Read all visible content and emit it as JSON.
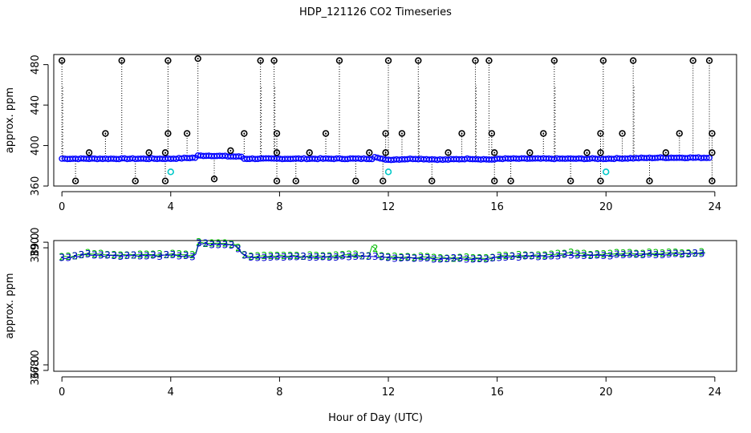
{
  "title": "HDP_121126  CO2 Timeseries",
  "xlabel": "Hour of Day (UTC)",
  "colors": {
    "black": "#000000",
    "blue": "#0000ff",
    "cyan": "#00c8c8",
    "green": "#00bb00",
    "navy": "#0000cc"
  },
  "chart_data": [
    {
      "type": "scatter",
      "panel": "top",
      "ylabel": "approx. ppm",
      "xlim": [
        -0.3,
        24.8
      ],
      "ylim": [
        360,
        490
      ],
      "xticks": [
        0,
        4,
        8,
        12,
        16,
        20,
        24
      ],
      "yticks": [
        360,
        400,
        440,
        480
      ],
      "baseline": [
        [
          0,
          387
        ],
        [
          1,
          387
        ],
        [
          2,
          387
        ],
        [
          3,
          387
        ],
        [
          4,
          387
        ],
        [
          4.9,
          388
        ],
        [
          5,
          390
        ],
        [
          5.5,
          390
        ],
        [
          6,
          389.5
        ],
        [
          6.6,
          389
        ],
        [
          6.7,
          387
        ],
        [
          8,
          387
        ],
        [
          10,
          387
        ],
        [
          11.4,
          387
        ],
        [
          11.5,
          389
        ],
        [
          11.7,
          387
        ],
        [
          12,
          386
        ],
        [
          13,
          387
        ],
        [
          14,
          386
        ],
        [
          15,
          387
        ],
        [
          15.9,
          386
        ],
        [
          16,
          387
        ],
        [
          18,
          387
        ],
        [
          20,
          387
        ],
        [
          22,
          388
        ],
        [
          23.8,
          388
        ]
      ],
      "outliers_high": [
        [
          0.0,
          484
        ],
        [
          2.2,
          484
        ],
        [
          3.9,
          484
        ],
        [
          5.0,
          486
        ],
        [
          7.3,
          484
        ],
        [
          7.8,
          484
        ],
        [
          10.2,
          484
        ],
        [
          12.0,
          484
        ],
        [
          13.1,
          484
        ],
        [
          15.2,
          484
        ],
        [
          15.7,
          484
        ],
        [
          18.1,
          484
        ],
        [
          19.9,
          484
        ],
        [
          21.0,
          484
        ],
        [
          23.2,
          484
        ],
        [
          23.8,
          484
        ]
      ],
      "outliers_mid": [
        [
          1.6,
          412
        ],
        [
          3.9,
          412
        ],
        [
          4.6,
          412
        ],
        [
          6.7,
          412
        ],
        [
          7.9,
          412
        ],
        [
          9.7,
          412
        ],
        [
          11.9,
          412
        ],
        [
          12.5,
          412
        ],
        [
          14.7,
          412
        ],
        [
          15.8,
          412
        ],
        [
          17.7,
          412
        ],
        [
          19.8,
          412
        ],
        [
          20.6,
          412
        ],
        [
          22.7,
          412
        ],
        [
          23.9,
          412
        ],
        [
          1.0,
          393
        ],
        [
          3.2,
          393
        ],
        [
          3.8,
          393
        ],
        [
          6.2,
          395
        ],
        [
          7.9,
          393
        ],
        [
          9.1,
          393
        ],
        [
          11.3,
          393
        ],
        [
          11.9,
          393
        ],
        [
          14.2,
          393
        ],
        [
          15.9,
          393
        ],
        [
          17.2,
          393
        ],
        [
          19.3,
          393
        ],
        [
          19.8,
          393
        ],
        [
          22.2,
          393
        ],
        [
          23.9,
          393
        ]
      ],
      "outliers_low": [
        [
          0.5,
          365
        ],
        [
          2.7,
          365
        ],
        [
          3.8,
          365
        ],
        [
          5.6,
          367
        ],
        [
          7.9,
          365
        ],
        [
          8.6,
          365
        ],
        [
          10.8,
          365
        ],
        [
          11.8,
          365
        ],
        [
          13.6,
          365
        ],
        [
          15.9,
          365
        ],
        [
          16.5,
          365
        ],
        [
          18.7,
          365
        ],
        [
          19.8,
          365
        ],
        [
          21.6,
          365
        ],
        [
          23.9,
          365
        ]
      ],
      "cyan_points": [
        [
          4.0,
          374
        ],
        [
          12.0,
          374
        ],
        [
          20.0,
          374
        ]
      ]
    },
    {
      "type": "line",
      "panel": "bottom",
      "ylabel": "approx. ppm",
      "xlim": [
        -0.3,
        24.8
      ],
      "ylim": [
        366.85,
        390.3
      ],
      "xticks": [
        0,
        4,
        8,
        12,
        16,
        20,
        24
      ],
      "yticks": [
        367.0,
        368.0,
        389.0,
        390.0
      ],
      "ytick_labels": [
        "367.0",
        "368.0",
        "389.0",
        "390.0"
      ],
      "series": [
        {
          "name": "2",
          "color": "green",
          "points": [
            [
              0,
              387.3
            ],
            [
              0.5,
              387.6
            ],
            [
              0.9,
              388.0
            ],
            [
              1.3,
              387.8
            ],
            [
              2,
              387.7
            ],
            [
              2.8,
              387.8
            ],
            [
              3.5,
              387.7
            ],
            [
              4.0,
              387.9
            ],
            [
              4.5,
              387.7
            ],
            [
              4.9,
              387.6
            ],
            [
              5.0,
              390.0
            ],
            [
              5.4,
              389.7
            ],
            [
              5.8,
              389.8
            ],
            [
              6.4,
              389.6
            ],
            [
              6.6,
              388.2
            ],
            [
              6.8,
              387.4
            ],
            [
              7.5,
              387.5
            ],
            [
              8.0,
              387.6
            ],
            [
              9,
              387.5
            ],
            [
              10,
              387.5
            ],
            [
              10.7,
              387.8
            ],
            [
              11.0,
              387.5
            ],
            [
              11.3,
              387.5
            ],
            [
              11.45,
              390.1
            ],
            [
              11.6,
              387.4
            ],
            [
              12,
              387.4
            ],
            [
              13,
              387.3
            ],
            [
              14,
              387.2
            ],
            [
              15,
              387.2
            ],
            [
              15.8,
              387.2
            ],
            [
              16,
              387.5
            ],
            [
              17,
              387.6
            ],
            [
              18,
              387.7
            ],
            [
              18.7,
              388.1
            ],
            [
              19.5,
              387.8
            ],
            [
              20,
              387.9
            ],
            [
              21,
              388.0
            ],
            [
              22,
              388.0
            ],
            [
              23,
              388.1
            ],
            [
              23.8,
              388.1
            ]
          ]
        },
        {
          "name": "3",
          "color": "navy",
          "points": [
            [
              0,
              387.1
            ],
            [
              0.5,
              387.4
            ],
            [
              0.9,
              387.8
            ],
            [
              1.3,
              387.6
            ],
            [
              2,
              387.5
            ],
            [
              2.8,
              387.6
            ],
            [
              3.5,
              387.5
            ],
            [
              4.0,
              387.7
            ],
            [
              4.5,
              387.5
            ],
            [
              4.9,
              387.4
            ],
            [
              5.0,
              389.9
            ],
            [
              5.4,
              389.6
            ],
            [
              5.8,
              389.6
            ],
            [
              6.4,
              389.4
            ],
            [
              6.6,
              388.0
            ],
            [
              6.8,
              387.2
            ],
            [
              7.5,
              387.3
            ],
            [
              8.0,
              387.4
            ],
            [
              9,
              387.3
            ],
            [
              10,
              387.3
            ],
            [
              10.7,
              387.5
            ],
            [
              11.0,
              387.4
            ],
            [
              11.3,
              387.4
            ],
            [
              11.45,
              387.6
            ],
            [
              11.6,
              387.3
            ],
            [
              12,
              387.2
            ],
            [
              13,
              387.1
            ],
            [
              14,
              387.0
            ],
            [
              15,
              387.0
            ],
            [
              15.8,
              387.0
            ],
            [
              16,
              387.3
            ],
            [
              17,
              387.4
            ],
            [
              18,
              387.5
            ],
            [
              18.7,
              387.7
            ],
            [
              19.5,
              387.6
            ],
            [
              20,
              387.6
            ],
            [
              21,
              387.7
            ],
            [
              22,
              387.8
            ],
            [
              23,
              387.9
            ],
            [
              23.8,
              387.9
            ]
          ]
        }
      ]
    }
  ]
}
